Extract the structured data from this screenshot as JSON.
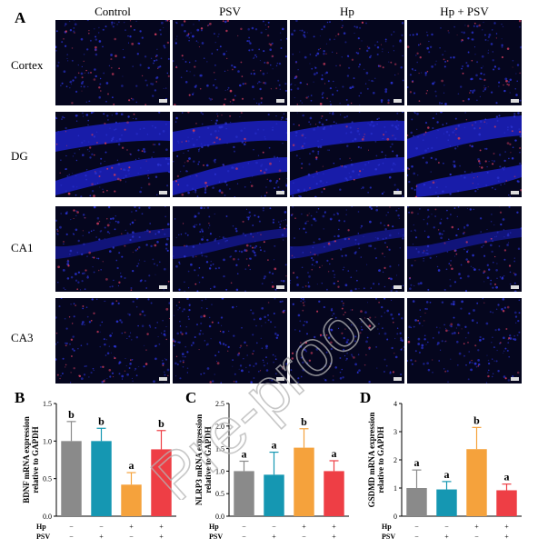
{
  "panels": {
    "a": "A",
    "b": "B",
    "c": "C",
    "d": "D"
  },
  "columns": [
    "Control",
    "PSV",
    "Hp",
    "Hp + PSV"
  ],
  "rows": [
    "Cortex",
    "DG",
    "CA1",
    "CA3"
  ],
  "watermark": "Pre-proof",
  "conditions": {
    "row1_label": "Hp",
    "row2_label": "PSV",
    "hp": [
      "−",
      "−",
      "+",
      "+"
    ],
    "psv": [
      "−",
      "+",
      "−",
      "+"
    ]
  },
  "colors": {
    "control": "#8a8a8a",
    "psv": "#1597b2",
    "hp": "#f5a23c",
    "hp_psv": "#ee3e45"
  },
  "chart_data": [
    {
      "type": "bar",
      "panel": "B",
      "ylabel_line1": "BDNF mRNA expression",
      "ylabel_line2": "relative to GAPDH",
      "categories": [
        "Control",
        "PSV",
        "Hp",
        "Hp + PSV"
      ],
      "values": [
        1.0,
        1.0,
        0.42,
        0.89
      ],
      "errors": [
        0.26,
        0.17,
        0.16,
        0.25
      ],
      "letters": [
        "b",
        "b",
        "a",
        "b"
      ],
      "ylim": [
        0,
        1.5
      ],
      "yticks": [
        "0.0",
        "0.5",
        "1.0",
        "1.5"
      ]
    },
    {
      "type": "bar",
      "panel": "C",
      "ylabel_line1": "NLRP3 mRNA expression",
      "ylabel_line2": "relative to GAPDH",
      "categories": [
        "Control",
        "PSV",
        "Hp",
        "Hp + PSV"
      ],
      "values": [
        1.0,
        0.92,
        1.52,
        1.0
      ],
      "errors": [
        0.22,
        0.5,
        0.42,
        0.23
      ],
      "letters": [
        "a",
        "a",
        "b",
        "a"
      ],
      "ylim": [
        0,
        2.5
      ],
      "yticks": [
        "0.0",
        "0.5",
        "1.0",
        "1.5",
        "2.0",
        "2.5"
      ]
    },
    {
      "type": "bar",
      "panel": "D",
      "ylabel_line1": "GSDMD mRNA expression",
      "ylabel_line2": "relative to GAPDH",
      "categories": [
        "Control",
        "PSV",
        "Hp",
        "Hp + PSV"
      ],
      "values": [
        1.0,
        0.95,
        2.38,
        0.92
      ],
      "errors": [
        0.64,
        0.28,
        0.77,
        0.22
      ],
      "letters": [
        "a",
        "a",
        "b",
        "a"
      ],
      "ylim": [
        0,
        4
      ],
      "yticks": [
        "0",
        "1",
        "2",
        "3",
        "4"
      ]
    }
  ]
}
